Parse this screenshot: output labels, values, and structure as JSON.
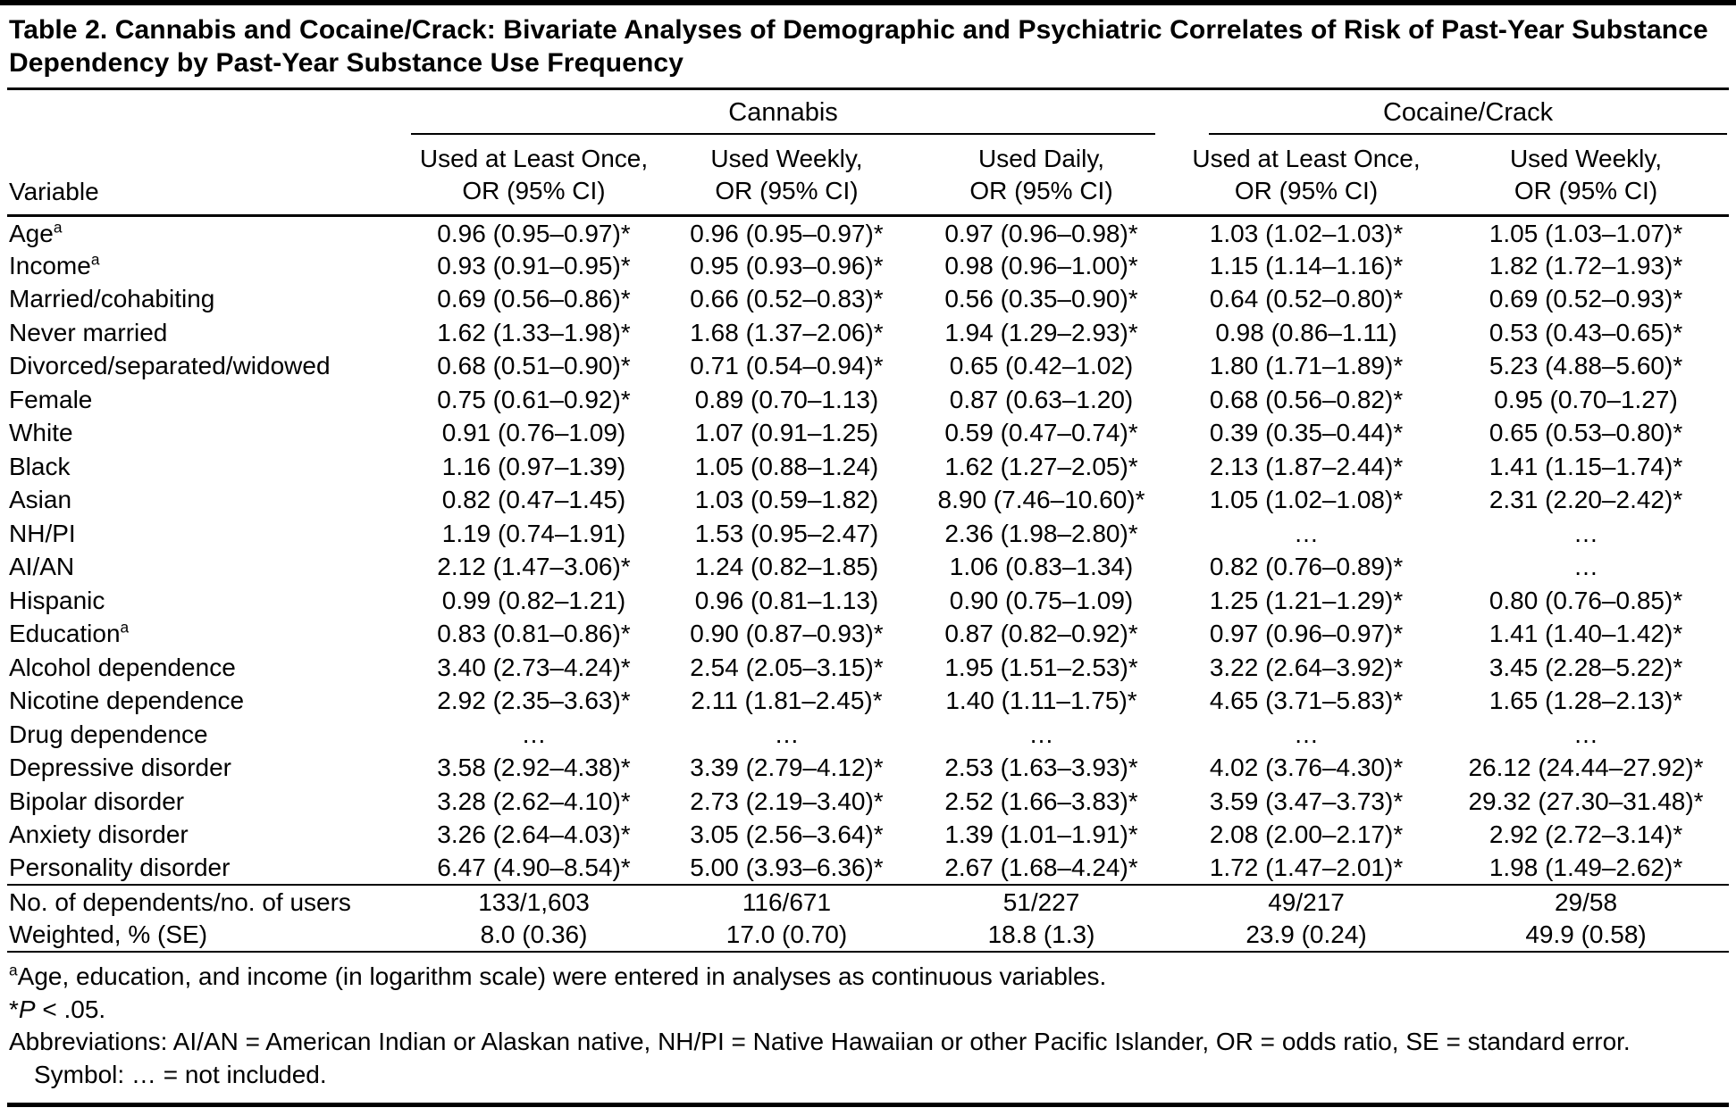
{
  "page": {
    "title": "Table 2. Cannabis and Cocaine/Crack: Bivariate Analyses of Demographic and Psychiatric Correlates of Risk of Past-Year Substance Dependency by Past-Year Substance Use Frequency"
  },
  "table": {
    "variable_header": "Variable",
    "groups": [
      {
        "label": "Cannabis",
        "colspan": 3
      },
      {
        "label": "Cocaine/Crack",
        "colspan": 2
      }
    ],
    "column_headers": [
      {
        "line1": "Used at Least Once,",
        "line2": "OR (95% CI)"
      },
      {
        "line1": "Used Weekly,",
        "line2": "OR (95% CI)"
      },
      {
        "line1": "Used Daily,",
        "line2": "OR (95% CI)"
      },
      {
        "line1": "Used at Least Once,",
        "line2": "OR (95% CI)"
      },
      {
        "line1": "Used Weekly,",
        "line2": "OR (95% CI)"
      }
    ],
    "rows": [
      {
        "variable": "Age",
        "sup": "a",
        "values": [
          "0.96 (0.95–0.97)*",
          "0.96 (0.95–0.97)*",
          "0.97 (0.96–0.98)*",
          "1.03 (1.02–1.03)*",
          "1.05 (1.03–1.07)*"
        ]
      },
      {
        "variable": "Income",
        "sup": "a",
        "values": [
          "0.93 (0.91–0.95)*",
          "0.95 (0.93–0.96)*",
          "0.98 (0.96–1.00)*",
          "1.15 (1.14–1.16)*",
          "1.82 (1.72–1.93)*"
        ]
      },
      {
        "variable": "Married/cohabiting",
        "values": [
          "0.69 (0.56–0.86)*",
          "0.66 (0.52–0.83)*",
          "0.56 (0.35–0.90)*",
          "0.64 (0.52–0.80)*",
          "0.69 (0.52–0.93)*"
        ]
      },
      {
        "variable": "Never married",
        "values": [
          "1.62 (1.33–1.98)*",
          "1.68 (1.37–2.06)*",
          "1.94 (1.29–2.93)*",
          "0.98 (0.86–1.11)",
          "0.53 (0.43–0.65)*"
        ]
      },
      {
        "variable": "Divorced/separated/widowed",
        "values": [
          "0.68 (0.51–0.90)*",
          "0.71 (0.54–0.94)*",
          "0.65 (0.42–1.02)",
          "1.80 (1.71–1.89)*",
          "5.23 (4.88–5.60)*"
        ]
      },
      {
        "variable": "Female",
        "values": [
          "0.75 (0.61–0.92)*",
          "0.89 (0.70–1.13)",
          "0.87 (0.63–1.20)",
          "0.68 (0.56–0.82)*",
          "0.95 (0.70–1.27)"
        ]
      },
      {
        "variable": "White",
        "values": [
          "0.91 (0.76–1.09)",
          "1.07 (0.91–1.25)",
          "0.59 (0.47–0.74)*",
          "0.39 (0.35–0.44)*",
          "0.65 (0.53–0.80)*"
        ]
      },
      {
        "variable": "Black",
        "values": [
          "1.16 (0.97–1.39)",
          "1.05 (0.88–1.24)",
          "1.62 (1.27–2.05)*",
          "2.13 (1.87–2.44)*",
          "1.41 (1.15–1.74)*"
        ]
      },
      {
        "variable": "Asian",
        "values": [
          "0.82 (0.47–1.45)",
          "1.03 (0.59–1.82)",
          "8.90 (7.46–10.60)*",
          "1.05 (1.02–1.08)*",
          "2.31 (2.20–2.42)*"
        ]
      },
      {
        "variable": "NH/PI",
        "values": [
          "1.19 (0.74–1.91)",
          "1.53 (0.95–2.47)",
          "2.36 (1.98–2.80)*",
          "…",
          "…"
        ]
      },
      {
        "variable": "AI/AN",
        "values": [
          "2.12 (1.47–3.06)*",
          "1.24 (0.82–1.85)",
          "1.06 (0.83–1.34)",
          "0.82 (0.76–0.89)*",
          "…"
        ]
      },
      {
        "variable": "Hispanic",
        "values": [
          "0.99 (0.82–1.21)",
          "0.96 (0.81–1.13)",
          "0.90 (0.75–1.09)",
          "1.25 (1.21–1.29)*",
          "0.80 (0.76–0.85)*"
        ]
      },
      {
        "variable": "Education",
        "sup": "a",
        "values": [
          "0.83 (0.81–0.86)*",
          "0.90 (0.87–0.93)*",
          "0.87 (0.82–0.92)*",
          "0.97 (0.96–0.97)*",
          "1.41 (1.40–1.42)*"
        ]
      },
      {
        "variable": "Alcohol dependence",
        "values": [
          "3.40 (2.73–4.24)*",
          "2.54 (2.05–3.15)*",
          "1.95 (1.51–2.53)*",
          "3.22 (2.64–3.92)*",
          "3.45 (2.28–5.22)*"
        ]
      },
      {
        "variable": "Nicotine dependence",
        "values": [
          "2.92 (2.35–3.63)*",
          "2.11 (1.81–2.45)*",
          "1.40 (1.11–1.75)*",
          "4.65 (3.71–5.83)*",
          "1.65 (1.28–2.13)*"
        ]
      },
      {
        "variable": "Drug dependence",
        "values": [
          "…",
          "…",
          "…",
          "…",
          "…"
        ]
      },
      {
        "variable": "Depressive disorder",
        "values": [
          "3.58 (2.92–4.38)*",
          "3.39 (2.79–4.12)*",
          "2.53 (1.63–3.93)*",
          "4.02 (3.76–4.30)*",
          "26.12 (24.44–27.92)*"
        ]
      },
      {
        "variable": "Bipolar disorder",
        "values": [
          "3.28 (2.62–4.10)*",
          "2.73 (2.19–3.40)*",
          "2.52 (1.66–3.83)*",
          "3.59 (3.47–3.73)*",
          "29.32 (27.30–31.48)*"
        ]
      },
      {
        "variable": "Anxiety disorder",
        "values": [
          "3.26 (2.64–4.03)*",
          "3.05 (2.56–3.64)*",
          "1.39 (1.01–1.91)*",
          "2.08 (2.00–2.17)*",
          "2.92 (2.72–3.14)*"
        ]
      },
      {
        "variable": "Personality disorder",
        "values": [
          "6.47 (4.90–8.54)*",
          "5.00 (3.93–6.36)*",
          "2.67 (1.68–4.24)*",
          "1.72 (1.47–2.01)*",
          "1.98 (1.49–2.62)*"
        ]
      }
    ],
    "summary_rows": [
      {
        "variable": "No. of dependents/no. of users",
        "values": [
          "133/1,603",
          "116/671",
          "51/227",
          "49/217",
          "29/58"
        ]
      },
      {
        "variable": "Weighted, % (SE)",
        "values": [
          "8.0 (0.36)",
          "17.0 (0.70)",
          "18.8 (1.3)",
          "23.9 (0.24)",
          "49.9 (0.58)"
        ]
      }
    ],
    "footnotes": [
      {
        "segments": [
          {
            "text": "a",
            "sup": true
          },
          {
            "text": "Age, education, and income (in logarithm scale) were entered in analyses as continuous variables."
          }
        ]
      },
      {
        "segments": [
          {
            "text": "*"
          },
          {
            "text": "P",
            "italic": true
          },
          {
            "text": " < .05."
          }
        ]
      },
      {
        "segments": [
          {
            "text": "Abbreviations: AI/AN = American Indian or Alaskan native, NH/PI = Native Hawaiian or other Pacific Islander, OR = odds ratio, SE = standard error."
          }
        ]
      },
      {
        "indent": true,
        "segments": [
          {
            "text": "Symbol: … = not included."
          }
        ]
      }
    ]
  }
}
